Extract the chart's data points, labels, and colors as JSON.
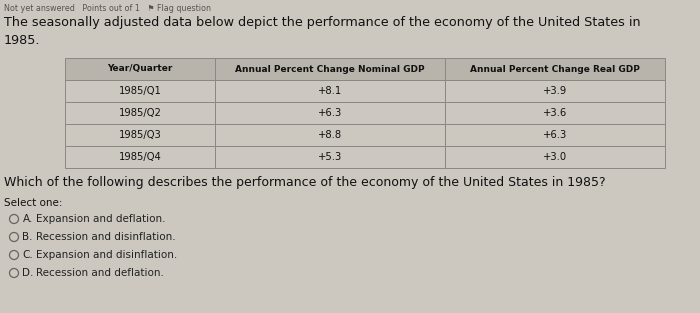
{
  "bg_color": "#ccc8c0",
  "header_top_text": "Not yet answered   Points out of 1   ⚑ Flag question",
  "intro_line1": "The seasonally adjusted data below depict the performance of the economy of the United States in",
  "intro_line2": "1985.",
  "col_headers": [
    "Year/Quarter",
    "Annual Percent Change Nominal GDP",
    "Annual Percent Change Real GDP"
  ],
  "rows": [
    [
      "1985/Q1",
      "+8.1",
      "+3.9"
    ],
    [
      "1985/Q2",
      "+6.3",
      "+3.6"
    ],
    [
      "1985/Q3",
      "+8.8",
      "+6.3"
    ],
    [
      "1985/Q4",
      "+5.3",
      "+3.0"
    ]
  ],
  "question_text": "Which of the following describes the performance of the economy of the United States in 1985?",
  "select_one_label": "Select one:",
  "options": [
    [
      "A",
      "Expansion and deflation."
    ],
    [
      "B",
      "Recession and disinflation."
    ],
    [
      "C",
      "Expansion and disinflation."
    ],
    [
      "D",
      "Recession and deflation."
    ]
  ],
  "table_header_bg": "#b8b4ac",
  "table_row_bg": "#ccc8c0",
  "table_alt_row_bg": "#c4c0b8",
  "table_border_color": "#888884",
  "text_color": "#111111",
  "small_text_color": "#555550",
  "option_text_color": "#222222"
}
